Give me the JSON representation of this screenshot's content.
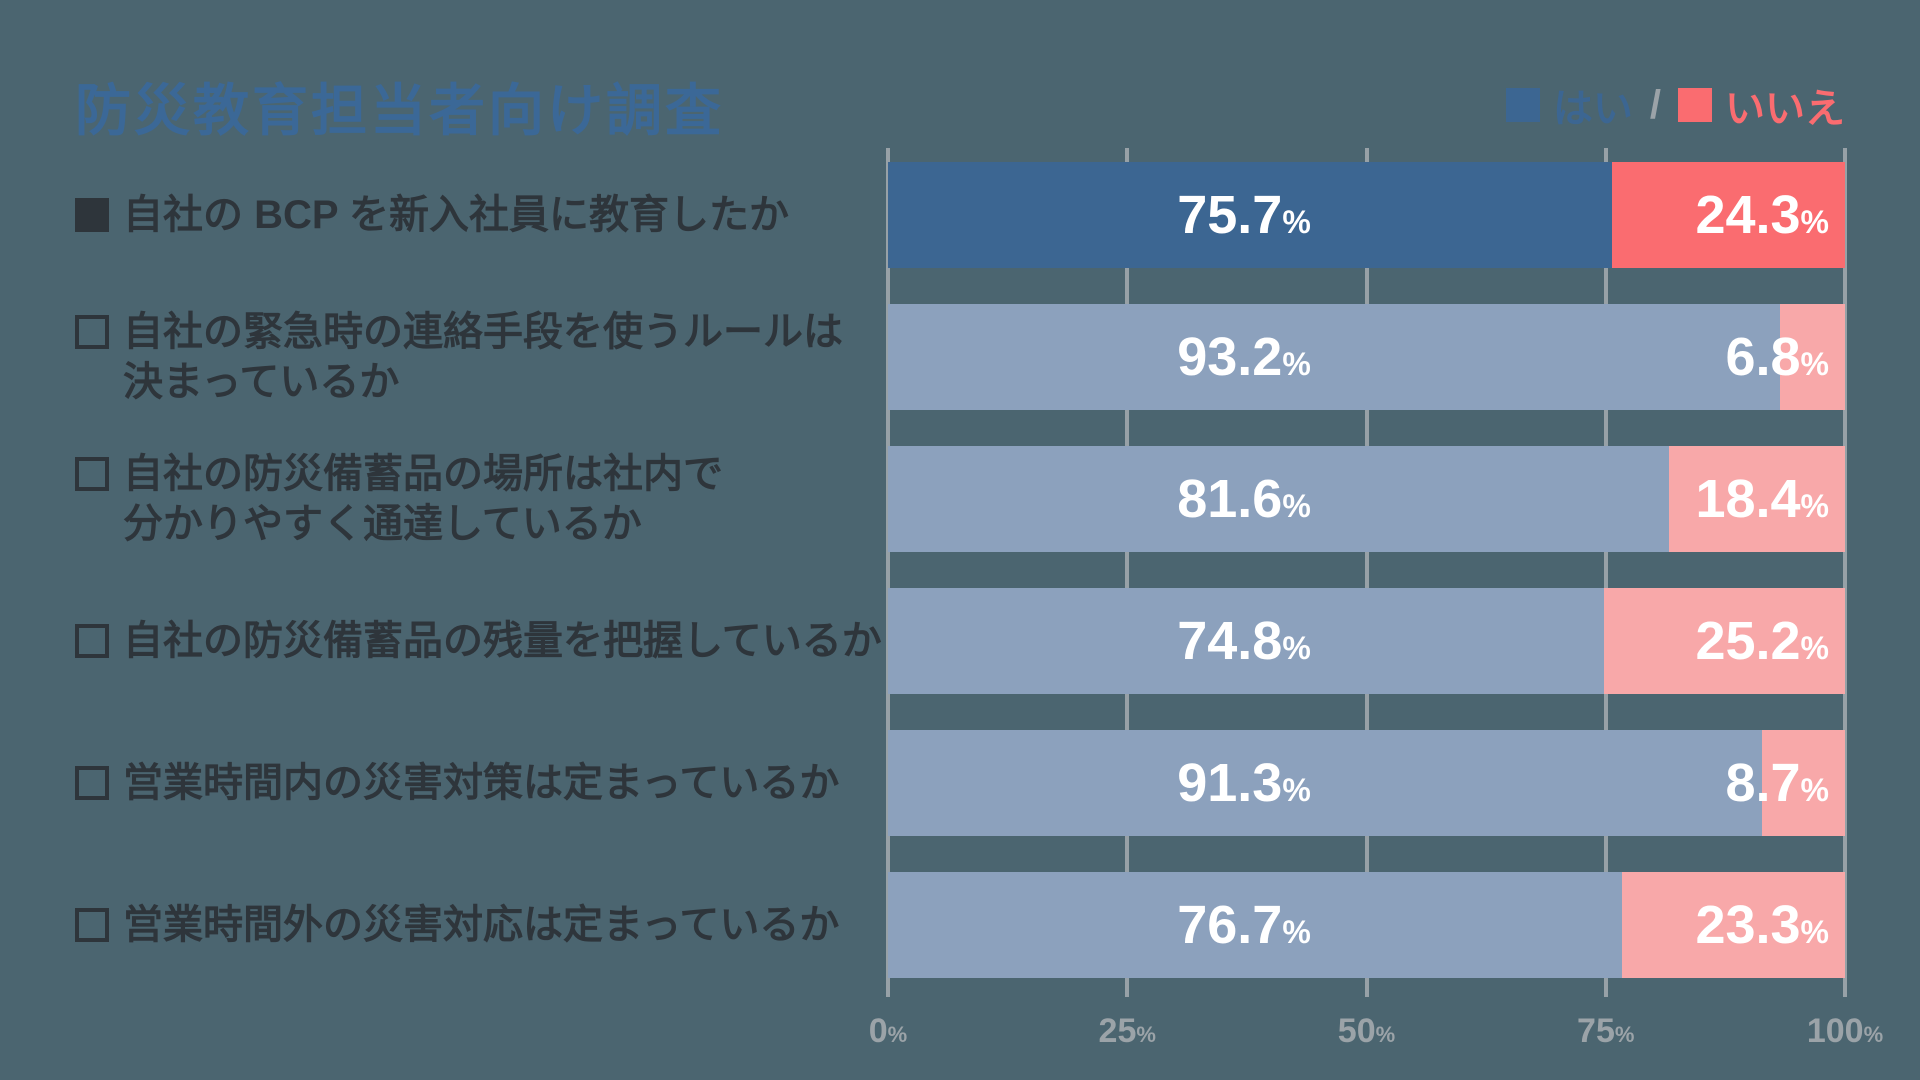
{
  "title": "防災教育担当者向け調査",
  "legend": {
    "yes_label": "はい",
    "no_label": "いいえ",
    "separator": "/"
  },
  "colors": {
    "background": "#4B6570",
    "title": "#3B6897",
    "label_text": "#2E353B",
    "gridline": "#97A1A7",
    "axis_text": "#9BA3A8",
    "yes_active": "#3C6692",
    "no_active": "#FA6C70",
    "yes_muted": "#8CA1BD",
    "no_muted": "#F8A8A9",
    "value_text": "#FFFFFF"
  },
  "chart_data": {
    "type": "bar",
    "orientation": "horizontal-stacked",
    "title": "防災教育担当者向け調査",
    "xlabel": "",
    "ylabel": "",
    "xlim": [
      0,
      100
    ],
    "gridlines": [
      0,
      25,
      50,
      75,
      100
    ],
    "grid": true,
    "legend_position": "top-right",
    "value_suffix": "%",
    "series_names": [
      "はい",
      "いいえ"
    ],
    "rows": [
      {
        "label_lines": [
          "自社の BCP を新入社員に教育したか"
        ],
        "checkbox": "filled",
        "yes": 75.7,
        "no": 24.3,
        "highlight": true
      },
      {
        "label_lines": [
          "自社の緊急時の連絡手段を使うルールは",
          "決まっているか"
        ],
        "checkbox": "empty",
        "yes": 93.2,
        "no": 6.8,
        "highlight": false
      },
      {
        "label_lines": [
          "自社の防災備蓄品の場所は社内で",
          "分かりやすく通達しているか"
        ],
        "checkbox": "empty",
        "yes": 81.6,
        "no": 18.4,
        "highlight": false
      },
      {
        "label_lines": [
          "自社の防災備蓄品の残量を把握しているか"
        ],
        "checkbox": "empty",
        "yes": 74.8,
        "no": 25.2,
        "highlight": false
      },
      {
        "label_lines": [
          "営業時間内の災害対策は定まっているか"
        ],
        "checkbox": "empty",
        "yes": 91.3,
        "no": 8.7,
        "highlight": false
      },
      {
        "label_lines": [
          "営業時間外の災害対応は定まっているか"
        ],
        "checkbox": "empty",
        "yes": 76.7,
        "no": 23.3,
        "highlight": false
      }
    ],
    "axis_ticks": [
      "0",
      "25",
      "50",
      "75",
      "100"
    ]
  }
}
